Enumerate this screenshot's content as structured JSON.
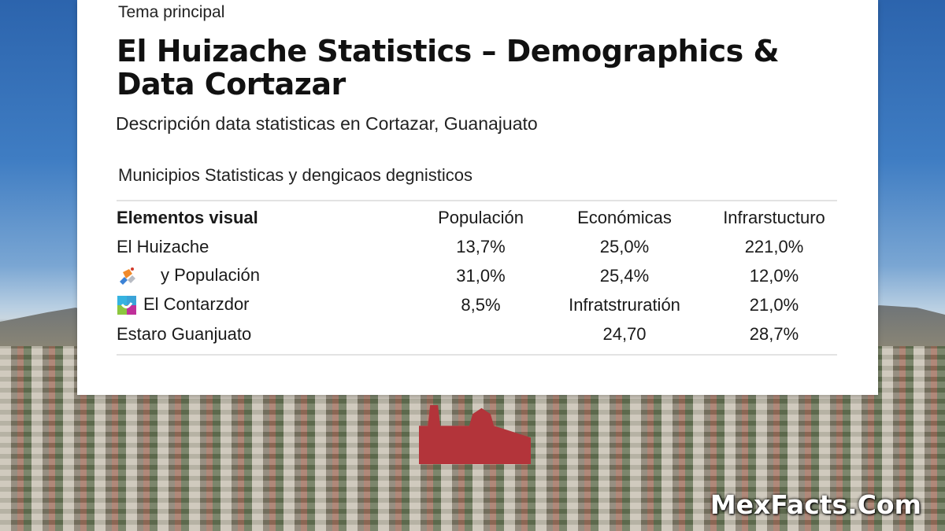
{
  "card": {
    "eyebrow": "Tema principal",
    "title": "El Huizache Statistics – Demographics & Data Cortazar",
    "subtitle": "Descripción data statisticas en Cortazar, Guanajuato",
    "section": "Municipios Statisticas y dengicaos degnisticos"
  },
  "table": {
    "headers": [
      "Elementos visual",
      "Populación",
      "Económicas",
      "Infrarstucturo"
    ],
    "rows": [
      {
        "label": "El Huizache",
        "icon": "",
        "values": [
          "13,7%",
          "25,0%",
          "221,0%"
        ]
      },
      {
        "label": "y Populación",
        "icon": "puzzle-logo-icon",
        "values": [
          "31,0%",
          "25,4%",
          "12,0%"
        ]
      },
      {
        "label": "El Contarzdor",
        "icon": "colorful-square-logo-icon",
        "values": [
          "8,5%",
          "Infratstruratión",
          "21,0%"
        ]
      },
      {
        "label": "Estaro Guanjuato",
        "icon": "",
        "values": [
          "",
          "24,70",
          "28,7%"
        ]
      }
    ]
  },
  "watermark": "MexFacts.Com"
}
